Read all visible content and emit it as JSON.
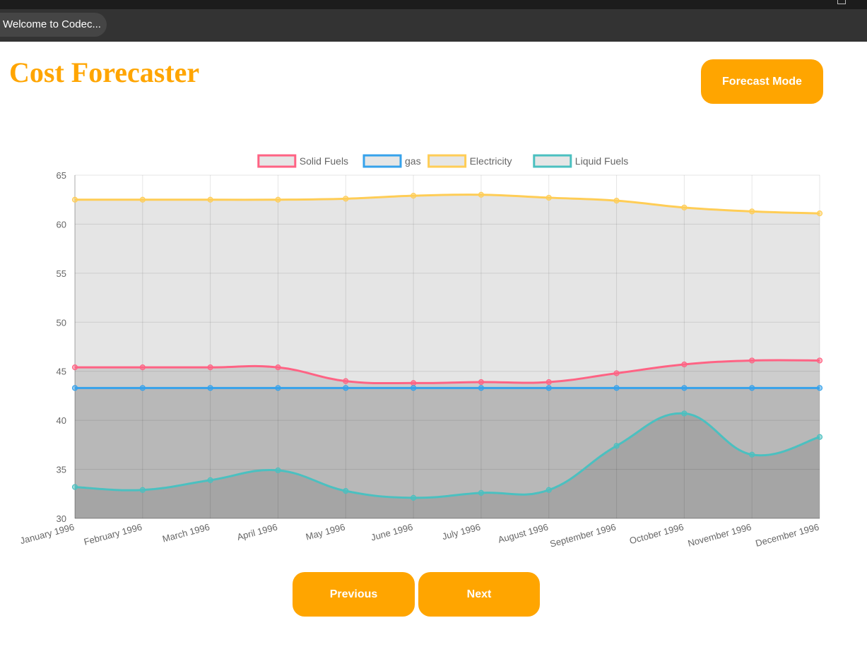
{
  "browser": {
    "tab_title": "Welcome to Codec..."
  },
  "header": {
    "title": "Cost Forecaster",
    "mode_button": "Forecast Mode"
  },
  "nav": {
    "previous": "Previous",
    "next": "Next"
  },
  "chart_data": {
    "type": "line",
    "fill": true,
    "smooth": true,
    "categories": [
      "January 1996",
      "February 1996",
      "March 1996",
      "April 1996",
      "May 1996",
      "June 1996",
      "July 1996",
      "August 1996",
      "September 1996",
      "October 1996",
      "November 1996",
      "December 1996"
    ],
    "series": [
      {
        "name": "Solid Fuels",
        "color": "#ff6384",
        "values": [
          45.4,
          45.4,
          45.4,
          45.4,
          44.0,
          43.8,
          43.9,
          43.9,
          44.8,
          45.7,
          46.1,
          46.1
        ]
      },
      {
        "name": "gas",
        "color": "#36a2eb",
        "values": [
          43.3,
          43.3,
          43.3,
          43.3,
          43.3,
          43.3,
          43.3,
          43.3,
          43.3,
          43.3,
          43.3,
          43.3
        ]
      },
      {
        "name": "Electricity",
        "color": "#ffcd56",
        "values": [
          62.5,
          62.5,
          62.5,
          62.5,
          62.6,
          62.9,
          63.0,
          62.7,
          62.4,
          61.7,
          61.3,
          61.1
        ]
      },
      {
        "name": "Liquid Fuels",
        "color": "#4bc0c0",
        "values": [
          33.2,
          32.9,
          33.9,
          34.9,
          32.8,
          32.1,
          32.6,
          32.9,
          37.4,
          40.7,
          36.5,
          38.3
        ]
      }
    ],
    "ylim": [
      30,
      65
    ],
    "yticks": [
      30,
      35,
      40,
      45,
      50,
      55,
      60,
      65
    ],
    "grid": true,
    "legend": "top-center"
  }
}
